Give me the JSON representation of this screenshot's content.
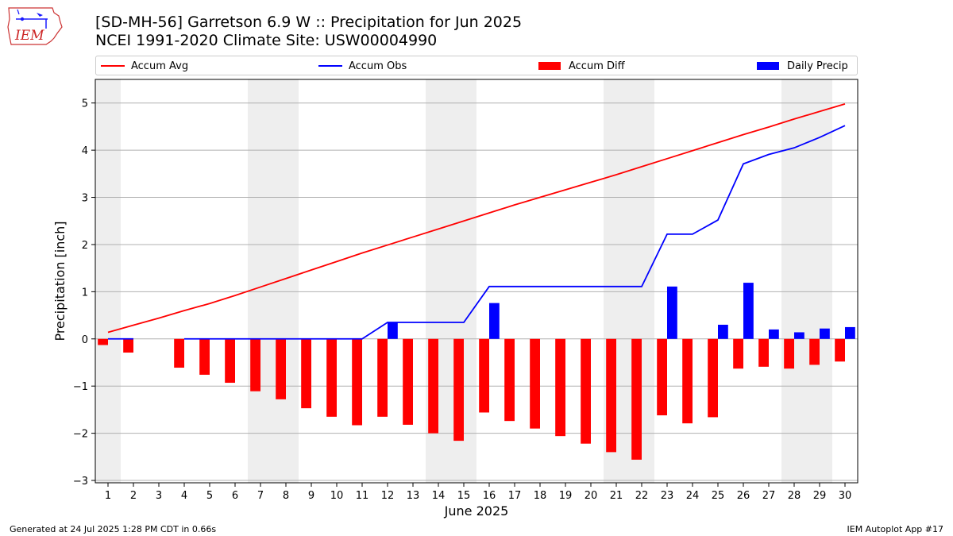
{
  "header": {
    "title_line1": "[SD-MH-56] Garretson 6.9 W :: Precipitation for Jun 2025",
    "title_line2": "NCEI 1991-2020 Climate Site: USW00004990"
  },
  "logo": {
    "text": "IEM",
    "icon": "iowa-state-outline-logo"
  },
  "footer": {
    "generated": "Generated at 24 Jul 2025 1:28 PM CDT in 0.66s",
    "app": "IEM Autoplot App #17"
  },
  "colors": {
    "accum_avg": "#ff0000",
    "accum_obs": "#0000ff",
    "accum_diff": "#ff0000",
    "daily_precip": "#0000ff",
    "weekend_shade": "#eeeeee",
    "grid": "#b0b0b0"
  },
  "legend": {
    "accum_avg": "Accum Avg",
    "accum_obs": "Accum Obs",
    "accum_diff": "Accum Diff",
    "daily_precip": "Daily Precip"
  },
  "chart_data": {
    "type": "bar",
    "title": "[SD-MH-56] Garretson 6.9 W :: Precipitation for Jun 2025",
    "subtitle": "NCEI 1991-2020 Climate Site: USW00004990",
    "xlabel": "June 2025",
    "ylabel": "Precipitation [inch]",
    "xlim": [
      0.5,
      30.5
    ],
    "ylim": [
      -3.05,
      5.5
    ],
    "x_ticks": [
      1,
      2,
      3,
      4,
      5,
      6,
      7,
      8,
      9,
      10,
      11,
      12,
      13,
      14,
      15,
      16,
      17,
      18,
      19,
      20,
      21,
      22,
      23,
      24,
      25,
      26,
      27,
      28,
      29,
      30
    ],
    "y_ticks": [
      -3,
      -2,
      -1,
      0,
      1,
      2,
      3,
      4,
      5
    ],
    "y_tick_labels": [
      "−3",
      "−2",
      "−1",
      "0",
      "1",
      "2",
      "3",
      "4",
      "5"
    ],
    "grid": "horizontal",
    "legend_position": "top",
    "shaded_days": [
      [
        0.5,
        1.5
      ],
      [
        6.5,
        8.5
      ],
      [
        13.5,
        15.5
      ],
      [
        20.5,
        22.5
      ],
      [
        27.5,
        29.5
      ]
    ],
    "series": [
      {
        "name": "Accum Avg",
        "kind": "line",
        "values": [
          0.14,
          0.29,
          0.44,
          0.6,
          0.75,
          0.92,
          1.1,
          1.28,
          1.46,
          1.64,
          1.82,
          1.99,
          2.16,
          2.33,
          2.5,
          2.67,
          2.84,
          3.0,
          3.16,
          3.32,
          3.48,
          3.65,
          3.82,
          3.99,
          4.16,
          4.33,
          4.49,
          4.66,
          4.82,
          4.98
        ]
      },
      {
        "name": "Accum Obs",
        "kind": "line",
        "values": [
          0.0,
          0.0,
          null,
          0.0,
          0.0,
          0.0,
          0.0,
          0.0,
          0.0,
          0.0,
          0.0,
          0.35,
          0.35,
          0.35,
          0.35,
          1.11,
          1.11,
          1.11,
          1.11,
          1.11,
          1.11,
          1.11,
          2.22,
          2.22,
          2.52,
          3.71,
          3.91,
          4.05,
          4.27,
          4.52
        ]
      },
      {
        "name": "Accum Diff",
        "kind": "bar",
        "values": [
          -0.13,
          -0.29,
          null,
          -0.61,
          -0.76,
          -0.93,
          -1.11,
          -1.28,
          -1.47,
          -1.65,
          -1.83,
          -1.65,
          -1.82,
          -2.0,
          -2.16,
          -1.56,
          -1.74,
          -1.9,
          -2.06,
          -2.22,
          -2.4,
          -2.56,
          -1.62,
          -1.79,
          -1.66,
          -0.63,
          -0.59,
          -0.63,
          -0.55,
          -0.48
        ]
      },
      {
        "name": "Daily Precip",
        "kind": "bar",
        "values": [
          0,
          0,
          null,
          0,
          0,
          0,
          0,
          0,
          0,
          0,
          0,
          0.35,
          0,
          0,
          0,
          0.76,
          0,
          0,
          0,
          0,
          0,
          0,
          1.11,
          0,
          0.3,
          1.19,
          0.2,
          0.14,
          0.22,
          0.25
        ]
      }
    ]
  }
}
